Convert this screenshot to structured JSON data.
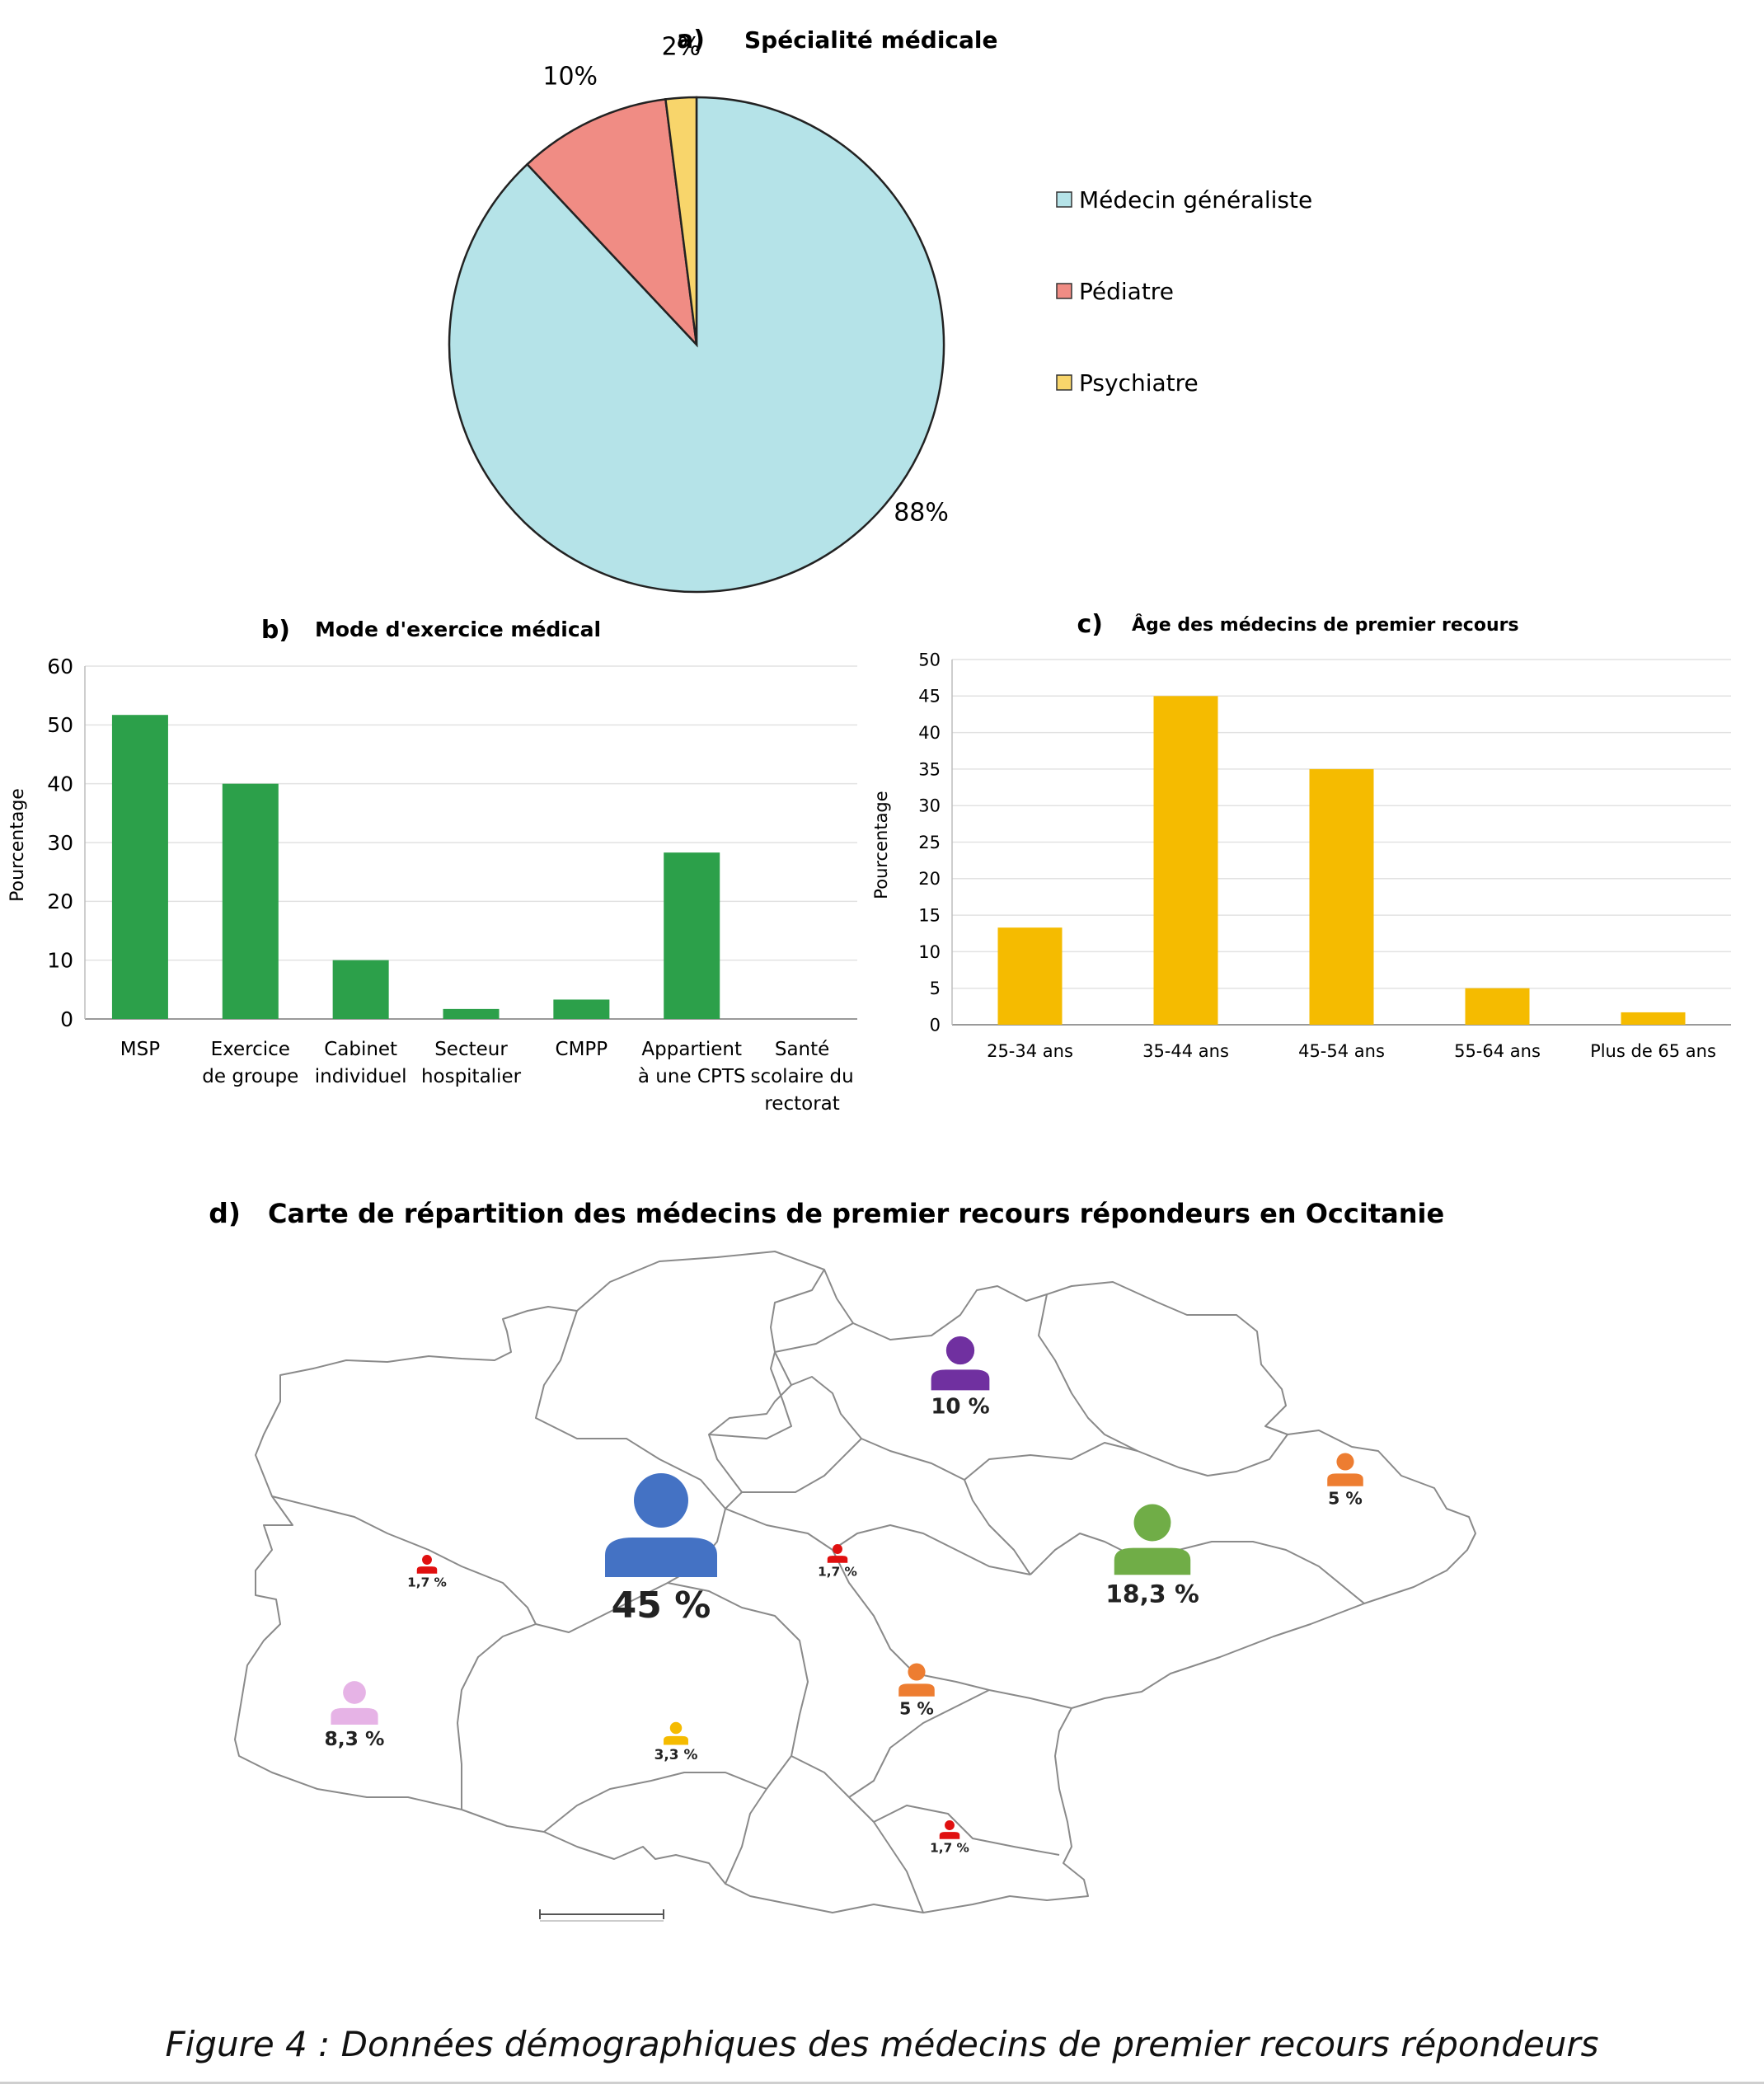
{
  "caption": "Figure 4 : Données démographiques des médecins de premier recours répondeurs",
  "chart_data": [
    {
      "id": "a",
      "type": "pie",
      "panel_letter": "a)",
      "title": "Spécialité médicale",
      "slices": [
        {
          "label": "Médecin généraliste",
          "value": 88,
          "value_label": "88%",
          "color": "#b5e3e8"
        },
        {
          "label": "Pédiatre",
          "value": 10,
          "value_label": "10%",
          "color": "#f08c84"
        },
        {
          "label": "Psychiatre",
          "value": 2,
          "value_label": "2%",
          "color": "#f8d56b"
        }
      ],
      "legend_position": "right"
    },
    {
      "id": "b",
      "type": "bar",
      "panel_letter": "b)",
      "title": "Mode d'exercice médical",
      "ylabel": "Pourcentage",
      "ylim": [
        0,
        60
      ],
      "yticks": [
        0,
        10,
        20,
        30,
        40,
        50,
        60
      ],
      "grid": true,
      "color": "#2ca04a",
      "categories": [
        [
          "MSP"
        ],
        [
          "Exercice",
          "de groupe"
        ],
        [
          "Cabinet",
          "individuel"
        ],
        [
          "Secteur",
          "hospitalier"
        ],
        [
          "CMPP"
        ],
        [
          "Appartient",
          "à une CPTS"
        ],
        [
          "Santé",
          "scolaire du",
          "rectorat"
        ]
      ],
      "values": [
        51.7,
        40,
        10,
        1.7,
        3.3,
        28.3,
        0
      ]
    },
    {
      "id": "c",
      "type": "bar",
      "panel_letter": "c)",
      "title": "Âge des médecins de premier recours",
      "ylabel": "Pourcentage",
      "ylim": [
        0,
        50
      ],
      "yticks": [
        0,
        5,
        10,
        15,
        20,
        25,
        30,
        35,
        40,
        45,
        50
      ],
      "grid": true,
      "color": "#f5bb00",
      "categories": [
        "25-34 ans",
        "35-44 ans",
        "45-54 ans",
        "55-64 ans",
        "Plus de 65 ans"
      ],
      "values": [
        13.3,
        45,
        35,
        5,
        1.7
      ]
    }
  ],
  "map": {
    "panel_letter": "d)",
    "title": "Carte de répartition des médecins de premier recours répondeurs en Occitanie",
    "markers": [
      {
        "label": "45 %",
        "color": "#4472c4"
      },
      {
        "label": "18,3 %",
        "color": "#70ad47"
      },
      {
        "label": "10 %",
        "color": "#7030a0"
      },
      {
        "label": "8,3 %",
        "color": "#e6b3e6"
      },
      {
        "label": "5 %",
        "color": "#ed7d31"
      },
      {
        "label": "5 %",
        "color": "#ed7d31"
      },
      {
        "label": "3,3 %",
        "color": "#f5bb00"
      },
      {
        "label": "1,7 %",
        "color": "#e01010"
      },
      {
        "label": "1,7 %",
        "color": "#e01010"
      },
      {
        "label": "1,7 %",
        "color": "#e01010"
      }
    ]
  }
}
